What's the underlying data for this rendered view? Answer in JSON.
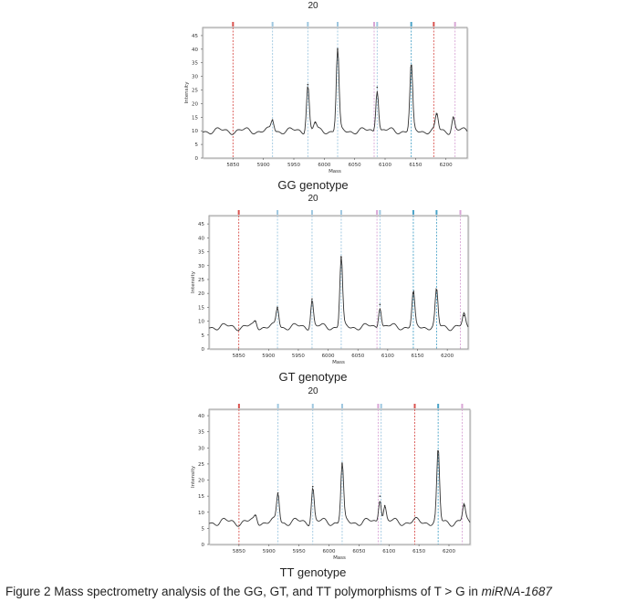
{
  "figure": {
    "caption_prefix": "Figure 2 Mass spectrometry analysis of the GG, GT, and TT polymorphisms of T > G in ",
    "caption_gene": "miRNA-1687"
  },
  "chart_data": [
    {
      "type": "line",
      "panel_number": "20",
      "genotype_label": "GG genotype",
      "xlabel": "Mass",
      "ylabel": "Intensity",
      "xlim": [
        5800,
        6235
      ],
      "ylim": [
        0,
        48
      ],
      "xticks": [
        5850,
        5900,
        5950,
        6000,
        6050,
        6100,
        6150,
        6200
      ],
      "yticks": [
        0,
        5,
        10,
        15,
        20,
        25,
        30,
        35,
        40,
        45
      ],
      "baseline": 10,
      "peaks": [
        {
          "x": 5915,
          "y": 14
        },
        {
          "x": 5973,
          "y": 27
        },
        {
          "x": 5985,
          "y": 13
        },
        {
          "x": 6022,
          "y": 40
        },
        {
          "x": 6087,
          "y": 26
        },
        {
          "x": 6143,
          "y": 34
        },
        {
          "x": 6185,
          "y": 16
        },
        {
          "x": 6212,
          "y": 15
        }
      ],
      "markers": [
        {
          "x": 5850,
          "color": "#d9534f"
        },
        {
          "x": 5915,
          "color": "#9ec7e0"
        },
        {
          "x": 5973,
          "color": "#9ec7e0"
        },
        {
          "x": 6022,
          "color": "#9ec7e0"
        },
        {
          "x": 6082,
          "color": "#d9a6d6"
        },
        {
          "x": 6087,
          "color": "#9ec7e0"
        },
        {
          "x": 6143,
          "color": "#4aa3c8"
        },
        {
          "x": 6180,
          "color": "#d9534f"
        },
        {
          "x": 6215,
          "color": "#d9a6d6"
        }
      ]
    },
    {
      "type": "line",
      "panel_number": "20",
      "genotype_label": "GT genotype",
      "xlabel": "Mass",
      "ylabel": "Intensity",
      "xlim": [
        5800,
        6235
      ],
      "ylim": [
        0,
        48
      ],
      "xticks": [
        5850,
        5900,
        5950,
        6000,
        6050,
        6100,
        6150,
        6200
      ],
      "yticks": [
        0,
        5,
        10,
        15,
        20,
        25,
        30,
        35,
        40,
        45
      ],
      "baseline": 8,
      "peaks": [
        {
          "x": 5878,
          "y": 10
        },
        {
          "x": 5915,
          "y": 15
        },
        {
          "x": 5973,
          "y": 18
        },
        {
          "x": 6022,
          "y": 33
        },
        {
          "x": 6087,
          "y": 16
        },
        {
          "x": 6143,
          "y": 20
        },
        {
          "x": 6182,
          "y": 21
        },
        {
          "x": 6228,
          "y": 12
        }
      ],
      "markers": [
        {
          "x": 5850,
          "color": "#d9534f"
        },
        {
          "x": 5915,
          "color": "#9ec7e0"
        },
        {
          "x": 5973,
          "color": "#9ec7e0"
        },
        {
          "x": 6022,
          "color": "#9ec7e0"
        },
        {
          "x": 6082,
          "color": "#d9a6d6"
        },
        {
          "x": 6087,
          "color": "#9ec7e0"
        },
        {
          "x": 6143,
          "color": "#4aa3c8"
        },
        {
          "x": 6182,
          "color": "#4aa3c8"
        },
        {
          "x": 6222,
          "color": "#d9a6d6"
        }
      ]
    },
    {
      "type": "line",
      "panel_number": "20",
      "genotype_label": "TT  genotype",
      "xlabel": "Mass",
      "ylabel": "Intensity",
      "xlim": [
        5800,
        6235
      ],
      "ylim": [
        0,
        42
      ],
      "xticks": [
        5850,
        5900,
        5950,
        6000,
        6050,
        6100,
        6150,
        6200
      ],
      "yticks": [
        0,
        5,
        10,
        15,
        20,
        25,
        30,
        35,
        40
      ],
      "baseline": 7,
      "peaks": [
        {
          "x": 5878,
          "y": 9
        },
        {
          "x": 5915,
          "y": 16
        },
        {
          "x": 5973,
          "y": 18
        },
        {
          "x": 6022,
          "y": 25
        },
        {
          "x": 6085,
          "y": 15
        },
        {
          "x": 6093,
          "y": 12
        },
        {
          "x": 6182,
          "y": 29
        },
        {
          "x": 6225,
          "y": 12
        }
      ],
      "markers": [
        {
          "x": 5850,
          "color": "#d9534f"
        },
        {
          "x": 5915,
          "color": "#9ec7e0"
        },
        {
          "x": 5973,
          "color": "#9ec7e0"
        },
        {
          "x": 6022,
          "color": "#9ec7e0"
        },
        {
          "x": 6082,
          "color": "#d9a6d6"
        },
        {
          "x": 6087,
          "color": "#9ec7e0"
        },
        {
          "x": 6143,
          "color": "#d9534f"
        },
        {
          "x": 6182,
          "color": "#4aa3c8"
        },
        {
          "x": 6222,
          "color": "#d9a6d6"
        }
      ]
    }
  ]
}
